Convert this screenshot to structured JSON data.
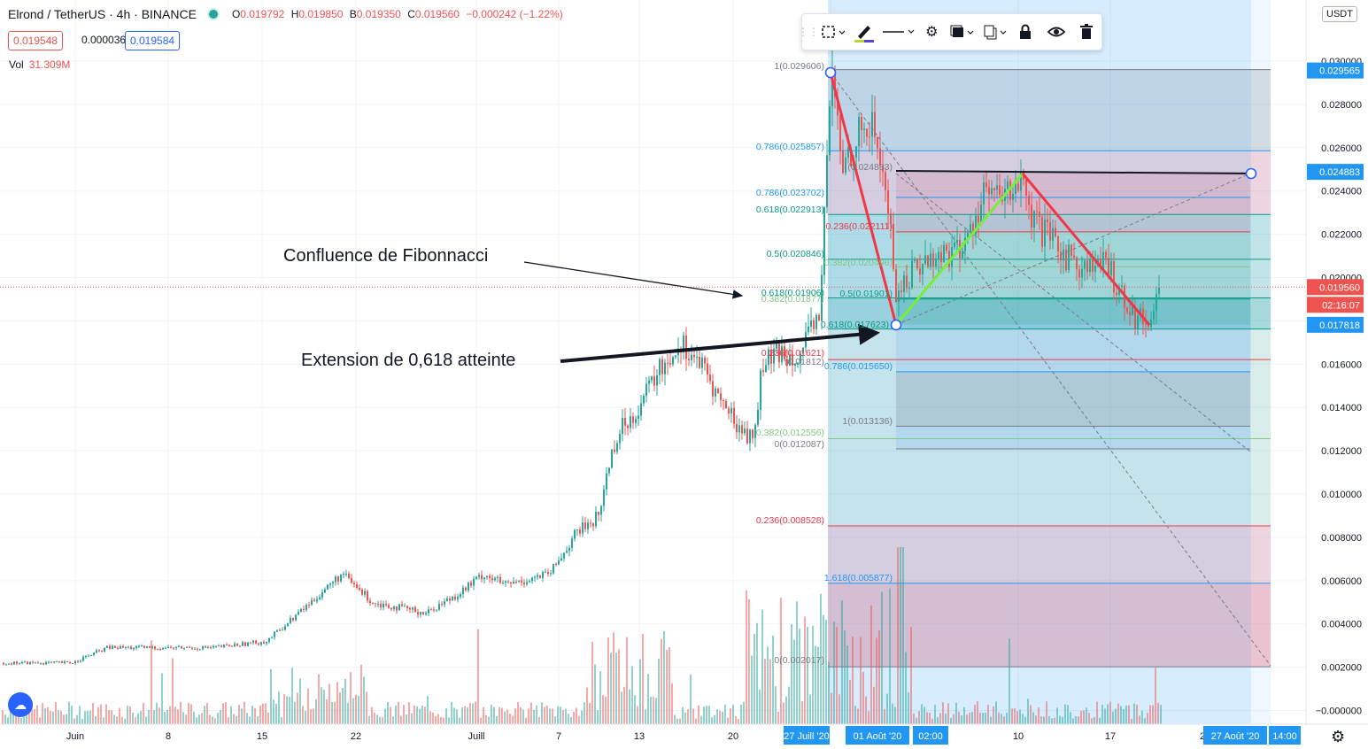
{
  "header": {
    "title": "Elrond / TetherUS · 4h · BINANCE",
    "ohlc": [
      {
        "k": "O",
        "v": "0.019792"
      },
      {
        "k": "H",
        "v": "0.019850"
      },
      {
        "k": "B",
        "v": "0.019350"
      },
      {
        "k": "C",
        "v": "0.019560"
      }
    ],
    "change": "−0.000242 (−1.22%)",
    "bid": "0.019548",
    "spread": "0.000036",
    "ask": "0.019584",
    "volume_label": "Vol",
    "volume_value": "31.309M"
  },
  "toolbar": {
    "icons": [
      "grip-icon",
      "select-area-icon",
      "pencil-icon",
      "line-style-icon",
      "gear-icon",
      "layers-icon",
      "clone-icon",
      "lock-icon",
      "eye-icon",
      "trash-icon"
    ]
  },
  "currency_button": "USDT",
  "annotations": {
    "confluence": "Confluence de Fibonnacci",
    "extension": "Extension de 0,618 atteinte"
  },
  "price_axis": {
    "ticks": [
      "0.030000",
      "0.028000",
      "0.026000",
      "0.024000",
      "0.022000",
      "0.020000",
      "0.018000",
      "0.016000",
      "0.014000",
      "0.012000",
      "0.010000",
      "0.008000",
      "0.006000",
      "0.004000",
      "0.002000",
      "−0.000000"
    ],
    "badges": [
      {
        "value": "0.029565",
        "color": "#2196f3"
      },
      {
        "value": "0.024883",
        "color": "#2196f3"
      },
      {
        "value": "0.019560",
        "color": "#ef5350"
      },
      {
        "value": "02:16:07",
        "color": "#ef5350"
      },
      {
        "value": "0.017818",
        "color": "#2196f3"
      }
    ],
    "top_partial": "0.030000"
  },
  "time_axis": {
    "ticks": [
      "Juin",
      "8",
      "15",
      "22",
      "Juill",
      "7",
      "13",
      "20",
      "10",
      "17",
      "2"
    ],
    "badges": [
      "27 Juill '20",
      "01 Août '20",
      "02:00",
      "27 Août '20",
      "14:00"
    ]
  },
  "fib_labels": [
    {
      "text": "1(0.029606)",
      "color": "#787b86"
    },
    {
      "text": "0.786(0.025857)",
      "color": "#2196f3"
    },
    {
      "text": "0.786(0.023702)",
      "color": "#2196f3"
    },
    {
      "text": "0.618(0.022913)",
      "color": "#089981"
    },
    {
      "text": "0.236(0.022111)",
      "color": "#f23645"
    },
    {
      "text": "0.5(0.020846)",
      "color": "#089981"
    },
    {
      "text": "0.382(0.020496)",
      "color": "#81c784"
    },
    {
      "text": "0.618(0.01906)",
      "color": "#089981"
    },
    {
      "text": "0.5(0.01901)",
      "color": "#089981"
    },
    {
      "text": "0.382(0.01877)",
      "color": "#81c784"
    },
    {
      "text": "0.618(0.017623)",
      "color": "#089981"
    },
    {
      "text": "0.236(0.01621)",
      "color": "#f23645"
    },
    {
      "text": "0.786(0.015650)",
      "color": "#2196f3"
    },
    {
      "text": "(0.024883)",
      "color": "#787b86"
    },
    {
      "text": "(0.01812)",
      "color": "#787b86"
    },
    {
      "text": "1(0.013136)",
      "color": "#787b86"
    },
    {
      "text": "0.382(0.012556)",
      "color": "#81c784"
    },
    {
      "text": "0(0.012087)",
      "color": "#787b86"
    },
    {
      "text": "0.236(0.008528)",
      "color": "#f23645"
    },
    {
      "text": "1.618(0.005877)",
      "color": "#2196f3"
    },
    {
      "text": "0(0.002017)",
      "color": "#787b86"
    }
  ],
  "chart_data": {
    "type": "candlestick",
    "symbol": "EGLD/USDT",
    "ylim": [
      -0.0002,
      0.031
    ],
    "last_price": 0.01956,
    "approx_closes": [
      {
        "t": "Juin",
        "v": 0.0022
      },
      {
        "t": "8",
        "v": 0.0028
      },
      {
        "t": "15",
        "v": 0.003
      },
      {
        "t": "19",
        "v": 0.0063
      },
      {
        "t": "22",
        "v": 0.005
      },
      {
        "t": "26",
        "v": 0.0048
      },
      {
        "t": "Juill",
        "v": 0.0063
      },
      {
        "t": "5",
        "v": 0.006
      },
      {
        "t": "7",
        "v": 0.0085
      },
      {
        "t": "10",
        "v": 0.012
      },
      {
        "t": "13",
        "v": 0.0165
      },
      {
        "t": "16",
        "v": 0.017
      },
      {
        "t": "20",
        "v": 0.013
      },
      {
        "t": "23",
        "v": 0.016
      },
      {
        "t": "27",
        "v": 0.0296
      },
      {
        "t": "01 Août",
        "v": 0.0178
      },
      {
        "t": "10",
        "v": 0.0249
      },
      {
        "t": "17",
        "v": 0.02
      },
      {
        "t": "20",
        "v": 0.0178
      },
      {
        "t": "22",
        "v": 0.0196
      }
    ]
  }
}
